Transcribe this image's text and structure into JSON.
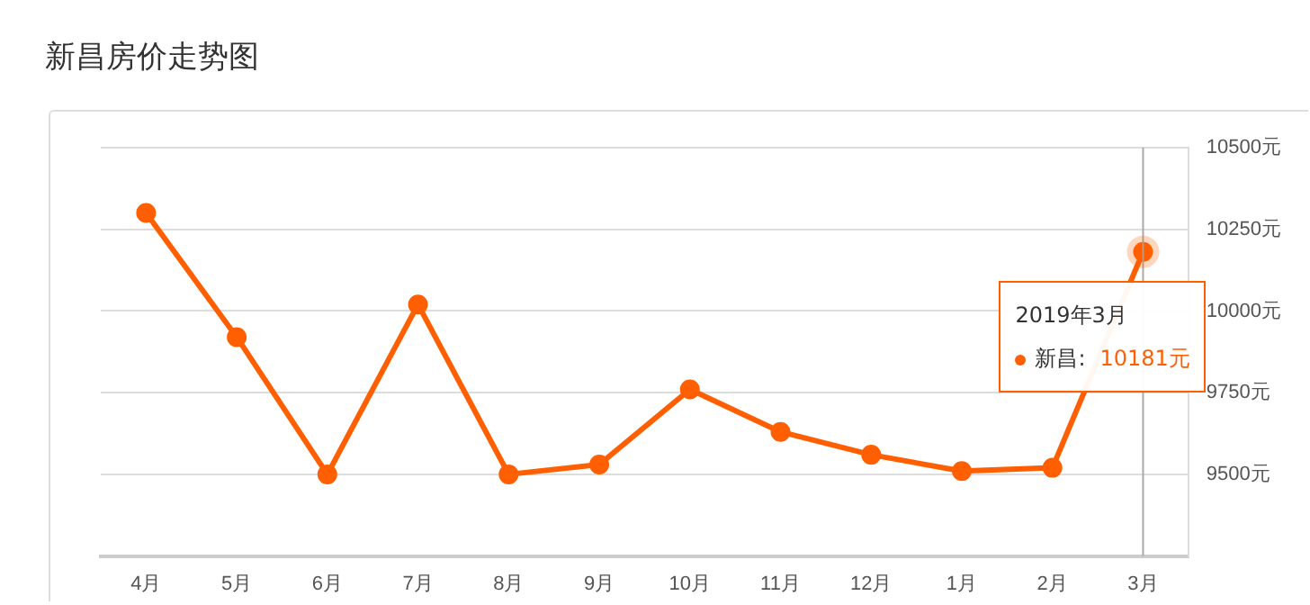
{
  "chart_data": {
    "type": "line",
    "title": "新昌房价走势图",
    "categories": [
      "4月",
      "5月",
      "6月",
      "7月",
      "8月",
      "9月",
      "10月",
      "11月",
      "12月",
      "1月",
      "2月",
      "3月"
    ],
    "series": [
      {
        "color": "#ff5f00",
        "values": [
          10300,
          9920,
          9500,
          10020,
          9500,
          9530,
          9760,
          9630,
          9560,
          9510,
          9520,
          10181
        ]
      }
    ],
    "ylim": [
      9250,
      10500
    ],
    "yticks": [
      {
        "value": 9250,
        "label": null
      },
      {
        "value": 9500,
        "label": "9500元"
      },
      {
        "value": 9750,
        "label": "9750元"
      },
      {
        "value": 10000,
        "label": "10000元"
      },
      {
        "value": 10250,
        "label": "10250元"
      },
      {
        "value": 10500,
        "label": "10500元"
      }
    ],
    "grid": "y",
    "legend": false,
    "marker": "circle",
    "line_style": "solid",
    "ref_lines": [
      {
        "axis": "x",
        "value": "3月",
        "color": "#aaaaaa"
      }
    ],
    "annotations": [
      {
        "text": "2019年3月",
        "x": "3月",
        "y": 10181
      },
      "新昌:",
      "10181元"
    ]
  }
}
